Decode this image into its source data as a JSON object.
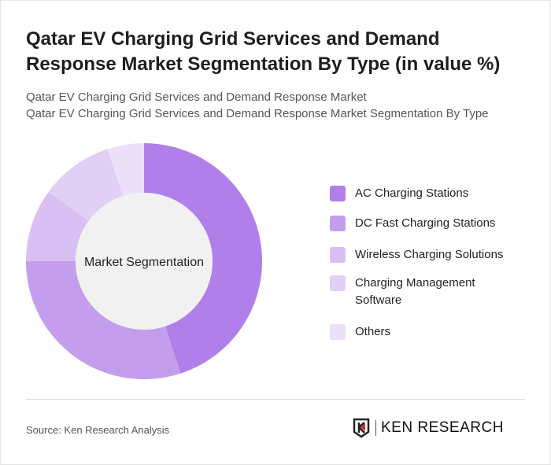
{
  "title": "Qatar EV Charging Grid Services and Demand Response Market Segmentation By Type (in value %)",
  "subtitle_1": "Qatar EV Charging Grid Services and Demand Response Market",
  "subtitle_2": "Qatar EV Charging Grid Services and Demand Response Market Segmentation By Type",
  "source": "Source: Ken Research Analysis",
  "logo_text": "KEN RESEARCH",
  "chart_data": {
    "type": "pie",
    "variant": "donut",
    "center_label": "Market Segmentation",
    "categories": [
      "AC Charging Stations",
      "DC Fast Charging Stations",
      "Wireless Charging Solutions",
      "Charging Management Software",
      "Others"
    ],
    "values": [
      45,
      30,
      10,
      10,
      5
    ],
    "colors": [
      "#b07fe9",
      "#c59ded",
      "#d9c0f4",
      "#e1cff6",
      "#ece0f9"
    ],
    "legend_position": "right"
  }
}
